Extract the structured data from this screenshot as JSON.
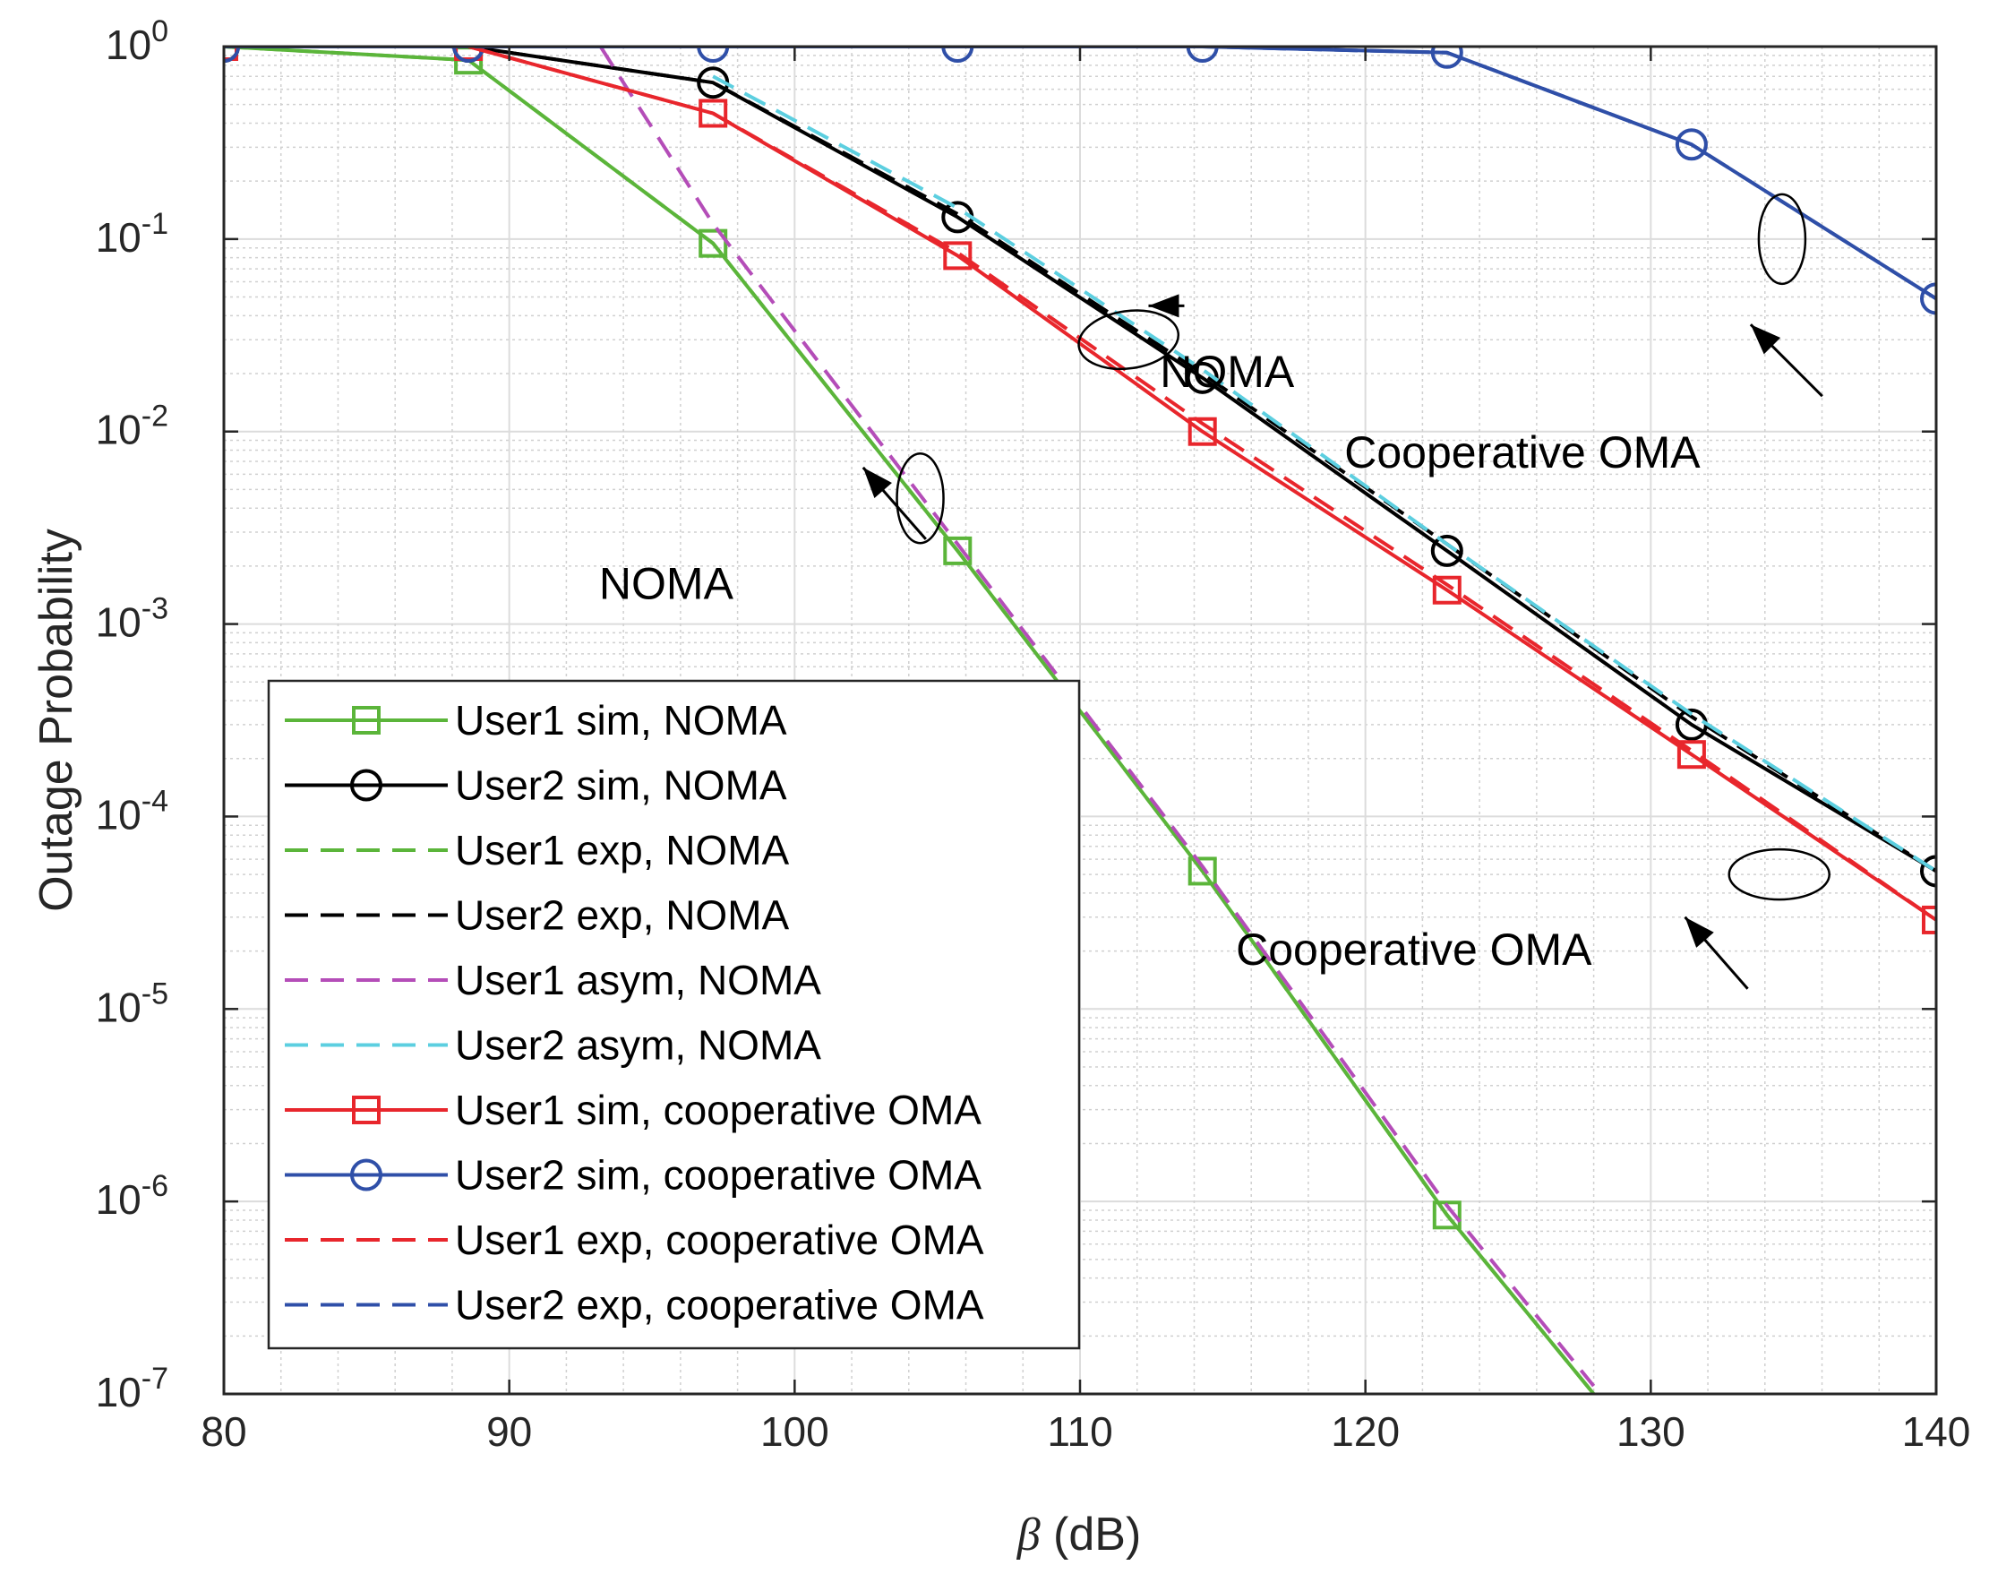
{
  "chart_data": {
    "type": "line",
    "xlabel_symbol": "β",
    "xlabel_unit": " (dB)",
    "ylabel": "Outage Probability",
    "yscale": "log",
    "xlim": [
      80,
      140
    ],
    "ylim": [
      1e-07,
      1
    ],
    "x_ticks": [
      "80",
      "90",
      "100",
      "110",
      "120",
      "130",
      "140"
    ],
    "y_ticks": [
      {
        "base": "10",
        "exp": "0"
      },
      {
        "base": "10",
        "exp": "-1"
      },
      {
        "base": "10",
        "exp": "-2"
      },
      {
        "base": "10",
        "exp": "-3"
      },
      {
        "base": "10",
        "exp": "-4"
      },
      {
        "base": "10",
        "exp": "-5"
      },
      {
        "base": "10",
        "exp": "-6"
      },
      {
        "base": "10",
        "exp": "-7"
      }
    ],
    "grid": true,
    "legend_position": "bottom-left",
    "series": [
      {
        "name": "User1 sim, NOMA",
        "color": "#5bb53a",
        "dash": "solid",
        "marker": "square",
        "x": [
          80,
          88.57,
          97.14,
          105.71,
          114.29,
          122.86,
          128
        ],
        "y": [
          1,
          0.85,
          0.095,
          0.0024,
          5.2e-05,
          8.5e-07,
          1e-07
        ]
      },
      {
        "name": "User2 sim, NOMA",
        "color": "#000000",
        "dash": "solid",
        "marker": "circle",
        "x": [
          80,
          88.57,
          97.14,
          105.71,
          114.29,
          122.86,
          131.43,
          140
        ],
        "y": [
          1,
          1,
          0.65,
          0.13,
          0.019,
          0.0024,
          0.0003,
          5.2e-05
        ]
      },
      {
        "name": "User1 exp, NOMA",
        "color": "#5bb53a",
        "dash": "dashed",
        "marker": "none",
        "x": [
          80,
          88.57,
          97.14,
          105.71,
          114.29,
          122.86,
          128
        ],
        "y": [
          1,
          0.85,
          0.095,
          0.0024,
          5.2e-05,
          8.5e-07,
          1e-07
        ]
      },
      {
        "name": "User2 exp, NOMA",
        "color": "#000000",
        "dash": "dashed",
        "marker": "none",
        "x": [
          88.57,
          97.14,
          105.71,
          114.29,
          122.86,
          131.43,
          140
        ],
        "y": [
          1,
          0.65,
          0.135,
          0.02,
          0.0026,
          0.00033,
          5.2e-05
        ]
      },
      {
        "name": "User1 asym, NOMA",
        "color": "#b44db8",
        "dash": "dashed",
        "marker": "none",
        "x": [
          93.2,
          97.14,
          105.71,
          114.29,
          122.86,
          128
        ],
        "y": [
          1,
          0.12,
          0.0026,
          5.5e-05,
          9.5e-07,
          1.1e-07
        ]
      },
      {
        "name": "User2 asym, NOMA",
        "color": "#5ccfe0",
        "dash": "dashed",
        "marker": "none",
        "x": [
          97.14,
          105.71,
          114.29,
          122.86,
          131.43,
          140
        ],
        "y": [
          0.7,
          0.145,
          0.021,
          0.0026,
          0.00034,
          5.2e-05
        ]
      },
      {
        "name": "User1 sim, cooperative OMA",
        "color": "#e8262c",
        "dash": "solid",
        "marker": "square",
        "x": [
          80,
          88.57,
          97.14,
          105.71,
          114.29,
          122.86,
          131.43,
          140
        ],
        "y": [
          1,
          1,
          0.45,
          0.082,
          0.01,
          0.0015,
          0.00021,
          2.9e-05
        ]
      },
      {
        "name": "User2 sim, cooperative OMA",
        "color": "#2f4fa8",
        "dash": "solid",
        "marker": "circle",
        "x": [
          80,
          88.57,
          97.14,
          105.71,
          114.29,
          122.86,
          131.43,
          140
        ],
        "y": [
          1,
          1,
          1,
          1,
          1,
          0.93,
          0.31,
          0.049
        ]
      },
      {
        "name": "User1 exp, cooperative OMA",
        "color": "#e8262c",
        "dash": "dashed",
        "marker": "none",
        "x": [
          88.57,
          97.14,
          105.71,
          114.29,
          122.86,
          131.43,
          140
        ],
        "y": [
          1,
          0.45,
          0.085,
          0.011,
          0.0016,
          0.00022,
          2.9e-05
        ]
      },
      {
        "name": "User2 exp, cooperative OMA",
        "color": "#2f4fa8",
        "dash": "dashed",
        "marker": "none",
        "x": [
          80,
          88.57,
          97.14,
          105.71,
          114.29,
          122.86,
          131.43,
          140
        ],
        "y": [
          1,
          1,
          1,
          1,
          1,
          0.93,
          0.31,
          0.049
        ]
      }
    ],
    "annotations": [
      {
        "text": "NOMA",
        "label_xy": [
          112.8,
          0.017
        ],
        "arrow_xy": [
          112.4,
          0.045
        ],
        "ellipse_xy": [
          111.7,
          0.03
        ]
      },
      {
        "text": "Cooperative OMA",
        "label_xy": [
          125.5,
          0.0065
        ],
        "arrow_xy": [
          133.5,
          0.036
        ],
        "ellipse_xy": [
          134.6,
          0.1
        ]
      },
      {
        "text": "NOMA",
        "label_xy": [
          95.5,
          0.00135
        ],
        "arrow_xy": [
          102.4,
          0.0065
        ],
        "ellipse_xy": [
          104.4,
          0.0045
        ]
      },
      {
        "text": "Cooperative OMA",
        "label_xy": [
          121.7,
          1.7e-05
        ],
        "arrow_xy": [
          131.2,
          3e-05
        ],
        "ellipse_xy": [
          134.5,
          5e-05
        ]
      }
    ]
  }
}
